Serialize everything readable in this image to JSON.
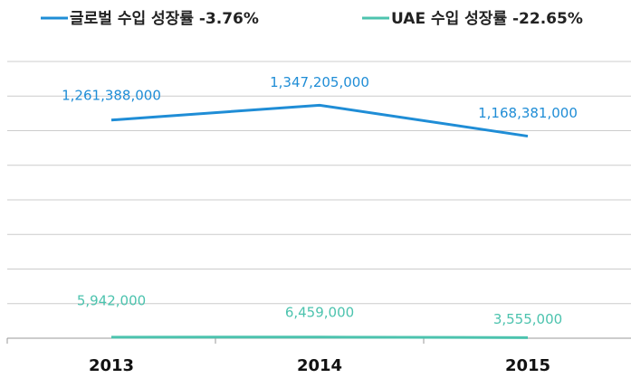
{
  "chart_data": {
    "type": "line",
    "categories": [
      "2013",
      "2014",
      "2015"
    ],
    "series": [
      {
        "name": "글로벌 수입 성장률 -3.76%",
        "color": "#1f8dd6",
        "values": [
          1261388000,
          1347205000,
          1168381000
        ],
        "value_labels": [
          "1,261,388,000",
          "1,347,205,000",
          "1,168,381,000"
        ]
      },
      {
        "name": "UAE 수입 성장률 -22.65%",
        "color": "#4cc3ae",
        "values": [
          5942000,
          6459000,
          3555000
        ],
        "value_labels": [
          "5,942,000",
          "6,459,000",
          "3,555,000"
        ]
      }
    ],
    "ylim": [
      0,
      1600000000
    ],
    "yticks": [
      0,
      200000000,
      400000000,
      600000000,
      800000000,
      1000000000,
      1200000000,
      1400000000,
      1600000000
    ],
    "grid": true
  }
}
